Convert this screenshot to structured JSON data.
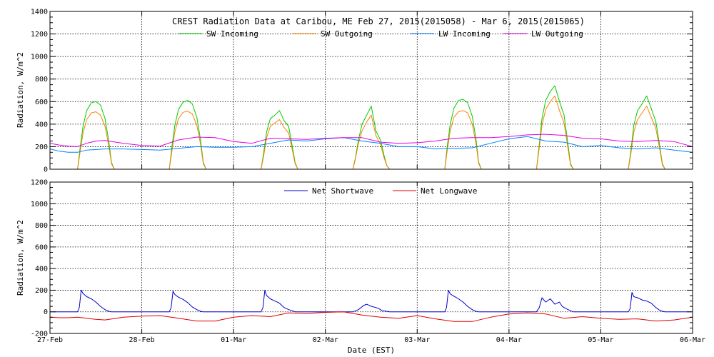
{
  "chart_data": [
    {
      "type": "line",
      "title": "CREST Radiation Data at Caribou, ME   Feb 27, 2015(2015058) - Mar  6, 2015(2015065)",
      "ylabel": "Radiation, W/m^2",
      "xlabel": "",
      "ylim": [
        0,
        1400
      ],
      "xlim": [
        0,
        7
      ],
      "yticks": [
        "0",
        "200",
        "400",
        "600",
        "800",
        "1000",
        "1200",
        "1400"
      ],
      "grid": true,
      "legend_position": "top",
      "series": [
        {
          "name": "SW Incoming",
          "color": "#00cc00",
          "x": [
            0,
            0.3,
            0.33,
            0.36,
            0.4,
            0.45,
            0.5,
            0.55,
            0.6,
            0.64,
            0.67,
            0.7,
            1.3,
            1.33,
            1.36,
            1.4,
            1.45,
            1.5,
            1.55,
            1.6,
            1.64,
            1.67,
            1.7,
            2.3,
            2.33,
            2.36,
            2.4,
            2.45,
            2.5,
            2.55,
            2.6,
            2.64,
            2.67,
            2.7,
            3.3,
            3.33,
            3.36,
            3.4,
            3.45,
            3.5,
            3.55,
            3.6,
            3.64,
            3.67,
            3.7,
            4.3,
            4.33,
            4.36,
            4.4,
            4.45,
            4.5,
            4.55,
            4.6,
            4.64,
            4.67,
            4.7,
            5.3,
            5.33,
            5.36,
            5.4,
            5.45,
            5.5,
            5.55,
            5.6,
            5.64,
            5.67,
            5.7,
            6.3,
            6.33,
            6.36,
            6.4,
            6.45,
            6.5,
            6.55,
            6.6,
            6.64,
            6.67,
            6.7,
            7
          ],
          "values": [
            0,
            0,
            200,
            380,
            520,
            590,
            600,
            570,
            450,
            250,
            60,
            0,
            0,
            210,
            390,
            530,
            595,
            610,
            580,
            460,
            260,
            60,
            0,
            0,
            160,
            330,
            450,
            480,
            520,
            430,
            380,
            200,
            60,
            0,
            0,
            110,
            260,
            400,
            480,
            560,
            340,
            260,
            120,
            30,
            0,
            0,
            220,
            400,
            540,
            610,
            620,
            590,
            470,
            270,
            60,
            0,
            0,
            220,
            450,
            610,
            690,
            740,
            600,
            480,
            240,
            50,
            0,
            0,
            180,
            390,
            520,
            580,
            650,
            540,
            420,
            220,
            50,
            0,
            0
          ]
        },
        {
          "name": "SW Outgoing",
          "color": "#ff8000",
          "x": [
            0,
            0.3,
            0.33,
            0.36,
            0.4,
            0.45,
            0.5,
            0.55,
            0.6,
            0.64,
            0.67,
            0.7,
            1.3,
            1.33,
            1.36,
            1.4,
            1.45,
            1.5,
            1.55,
            1.6,
            1.64,
            1.67,
            1.7,
            2.3,
            2.33,
            2.36,
            2.4,
            2.45,
            2.5,
            2.55,
            2.6,
            2.64,
            2.67,
            2.7,
            3.3,
            3.33,
            3.36,
            3.4,
            3.45,
            3.5,
            3.55,
            3.6,
            3.64,
            3.67,
            3.7,
            4.3,
            4.33,
            4.36,
            4.4,
            4.45,
            4.5,
            4.55,
            4.6,
            4.64,
            4.67,
            4.7,
            5.3,
            5.33,
            5.36,
            5.4,
            5.45,
            5.5,
            5.55,
            5.6,
            5.64,
            5.67,
            5.7,
            6.3,
            6.33,
            6.36,
            6.4,
            6.45,
            6.5,
            6.55,
            6.6,
            6.64,
            6.67,
            6.7,
            7
          ],
          "values": [
            0,
            0,
            160,
            320,
            440,
            500,
            510,
            480,
            380,
            210,
            50,
            0,
            0,
            170,
            330,
            450,
            505,
            515,
            490,
            390,
            220,
            50,
            0,
            0,
            130,
            280,
            380,
            410,
            440,
            370,
            320,
            170,
            50,
            0,
            0,
            100,
            230,
            340,
            420,
            480,
            300,
            220,
            100,
            30,
            0,
            0,
            180,
            340,
            460,
            510,
            520,
            500,
            400,
            230,
            50,
            0,
            0,
            190,
            390,
            530,
            600,
            650,
            520,
            410,
            200,
            40,
            0,
            0,
            150,
            330,
            440,
            500,
            560,
            460,
            360,
            190,
            40,
            0,
            0
          ]
        },
        {
          "name": "LW Incoming",
          "color": "#0080ff",
          "x": [
            0,
            0.1,
            0.2,
            0.3,
            0.4,
            0.6,
            0.8,
            1.0,
            1.2,
            1.4,
            1.6,
            1.8,
            2.0,
            2.2,
            2.4,
            2.6,
            2.8,
            3.0,
            3.2,
            3.4,
            3.6,
            3.8,
            4.0,
            4.2,
            4.4,
            4.6,
            4.8,
            5.0,
            5.2,
            5.4,
            5.6,
            5.8,
            6.0,
            6.2,
            6.4,
            6.6,
            6.8,
            7.0
          ],
          "values": [
            180,
            160,
            150,
            150,
            170,
            180,
            180,
            175,
            170,
            185,
            200,
            195,
            195,
            200,
            230,
            260,
            250,
            270,
            280,
            250,
            230,
            200,
            200,
            180,
            185,
            190,
            230,
            270,
            290,
            250,
            240,
            200,
            210,
            190,
            180,
            190,
            170,
            150
          ]
        },
        {
          "name": "LW Outgoing",
          "color": "#e000e0",
          "x": [
            0,
            0.1,
            0.2,
            0.3,
            0.4,
            0.5,
            0.6,
            0.8,
            1.0,
            1.2,
            1.4,
            1.6,
            1.8,
            2.0,
            2.2,
            2.4,
            2.6,
            2.8,
            3.0,
            3.2,
            3.4,
            3.6,
            3.8,
            4.0,
            4.2,
            4.4,
            4.6,
            4.8,
            5.0,
            5.2,
            5.4,
            5.6,
            5.8,
            6.0,
            6.2,
            6.4,
            6.6,
            6.8,
            7.0
          ],
          "values": [
            230,
            215,
            205,
            200,
            230,
            250,
            255,
            230,
            210,
            205,
            260,
            285,
            280,
            245,
            230,
            275,
            270,
            265,
            275,
            280,
            280,
            240,
            230,
            235,
            250,
            275,
            280,
            280,
            290,
            305,
            310,
            300,
            275,
            270,
            250,
            245,
            255,
            245,
            200
          ]
        }
      ]
    },
    {
      "type": "line",
      "title": "",
      "ylabel": "Radiation, W/m^2",
      "xlabel": "Date (EST)",
      "ylim": [
        -200,
        1200
      ],
      "xlim": [
        0,
        7
      ],
      "yticks": [
        "-200",
        "0",
        "200",
        "400",
        "600",
        "800",
        "1000",
        "1200"
      ],
      "categories": [
        "27-Feb",
        "28-Feb",
        "01-Mar",
        "02-Mar",
        "03-Mar",
        "04-Mar",
        "05-Mar",
        "06-Mar"
      ],
      "grid": true,
      "legend_position": "top",
      "series": [
        {
          "name": "Net Shortwave",
          "color": "#0000cc",
          "x": [
            0,
            0.3,
            0.32,
            0.34,
            0.36,
            0.4,
            0.45,
            0.5,
            0.55,
            0.6,
            0.64,
            0.67,
            0.7,
            1.3,
            1.32,
            1.34,
            1.36,
            1.4,
            1.45,
            1.5,
            1.55,
            1.6,
            1.64,
            1.67,
            1.7,
            2.3,
            2.32,
            2.34,
            2.36,
            2.4,
            2.45,
            2.5,
            2.55,
            2.6,
            2.64,
            2.67,
            2.7,
            3.3,
            3.36,
            3.42,
            3.45,
            3.5,
            3.55,
            3.58,
            3.62,
            3.67,
            3.7,
            4.3,
            4.32,
            4.34,
            4.36,
            4.4,
            4.45,
            4.5,
            4.55,
            4.6,
            4.64,
            4.67,
            4.7,
            5.3,
            5.33,
            5.36,
            5.4,
            5.45,
            5.5,
            5.55,
            5.58,
            5.62,
            5.67,
            5.7,
            6.3,
            6.32,
            6.34,
            6.36,
            6.4,
            6.45,
            6.5,
            6.55,
            6.6,
            6.64,
            6.67,
            6.7,
            7
          ],
          "values": [
            0,
            0,
            40,
            200,
            170,
            140,
            120,
            90,
            50,
            20,
            5,
            0,
            0,
            0,
            40,
            190,
            160,
            135,
            115,
            85,
            45,
            20,
            5,
            0,
            0,
            0,
            40,
            200,
            150,
            120,
            100,
            80,
            40,
            20,
            10,
            0,
            0,
            0,
            20,
            60,
            70,
            50,
            40,
            30,
            10,
            5,
            0,
            0,
            40,
            200,
            165,
            145,
            120,
            90,
            50,
            20,
            5,
            0,
            0,
            0,
            40,
            130,
            90,
            120,
            70,
            90,
            50,
            30,
            10,
            0,
            0,
            30,
            180,
            140,
            130,
            110,
            100,
            80,
            40,
            15,
            5,
            0,
            0
          ]
        },
        {
          "name": "Net Longwave",
          "color": "#dd0000",
          "x": [
            0,
            0.1,
            0.2,
            0.3,
            0.4,
            0.5,
            0.6,
            0.8,
            1.0,
            1.2,
            1.4,
            1.6,
            1.8,
            2.0,
            2.2,
            2.4,
            2.6,
            2.8,
            3.0,
            3.2,
            3.4,
            3.6,
            3.8,
            4.0,
            4.2,
            4.4,
            4.6,
            4.8,
            5.0,
            5.2,
            5.4,
            5.6,
            5.8,
            6.0,
            6.2,
            6.4,
            6.6,
            6.8,
            7.0
          ],
          "values": [
            -50,
            -55,
            -55,
            -50,
            -60,
            -70,
            -75,
            -50,
            -40,
            -35,
            -60,
            -85,
            -85,
            -50,
            -35,
            -45,
            -10,
            -15,
            -5,
            0,
            -30,
            -50,
            -60,
            -35,
            -65,
            -90,
            -90,
            -50,
            -20,
            -10,
            -20,
            -60,
            -45,
            -60,
            -70,
            -65,
            -85,
            -75,
            -50
          ]
        }
      ]
    }
  ]
}
